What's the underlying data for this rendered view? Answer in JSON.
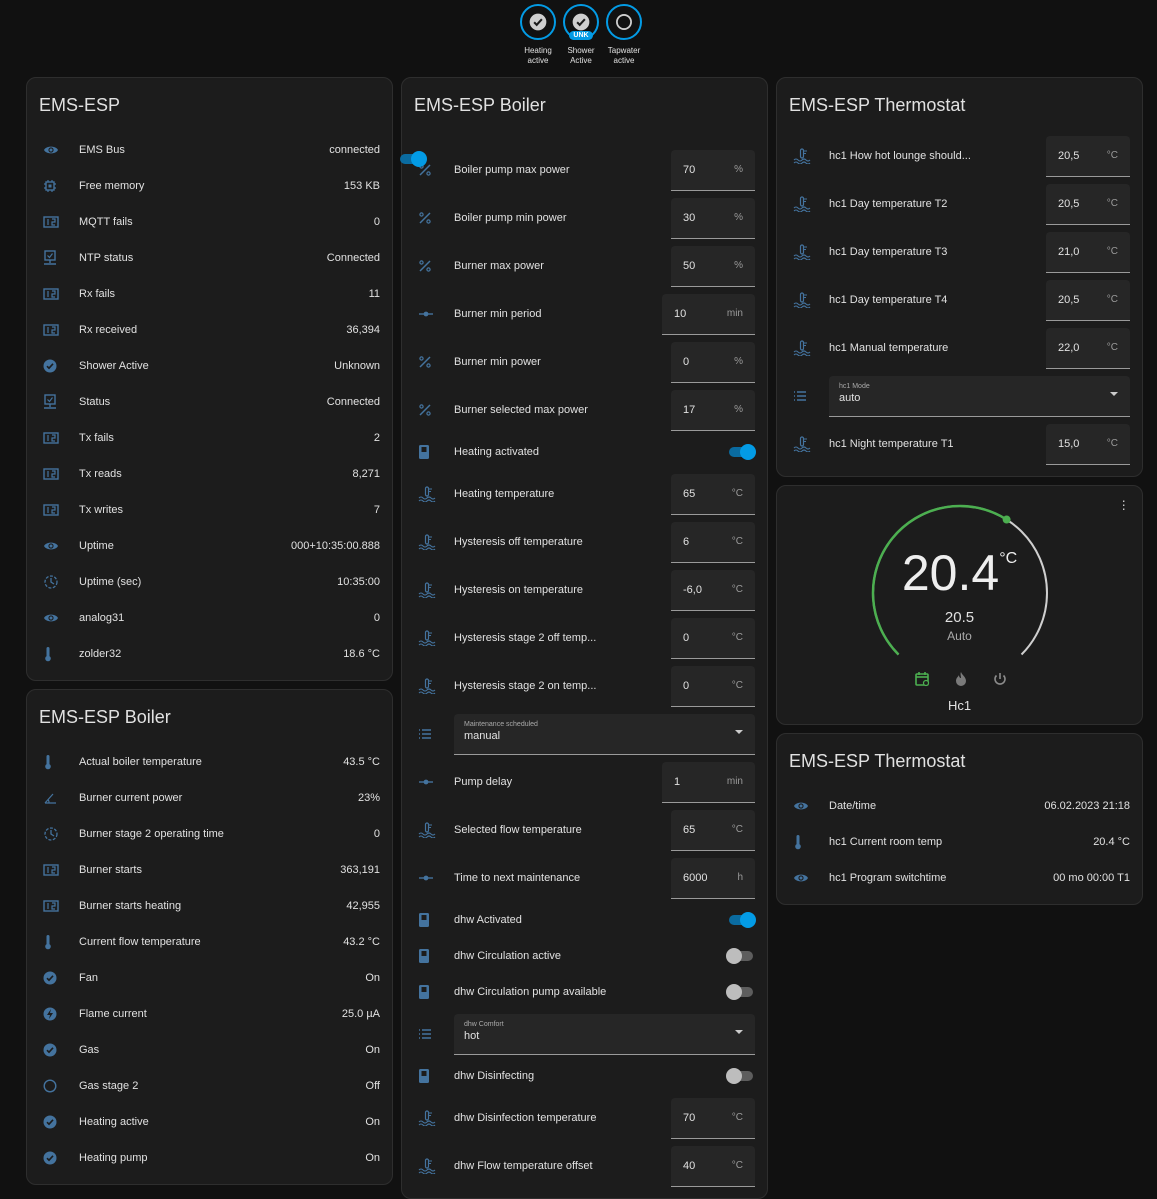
{
  "colors": {
    "accent": "#039be5",
    "icon": "#44739e",
    "heat": "#4caf50"
  },
  "badges": [
    {
      "label": "Heating active",
      "icon": "check-circle",
      "unk": ""
    },
    {
      "label": "Shower Active",
      "icon": "check-circle",
      "unk": "UNK"
    },
    {
      "label": "Tapwater active",
      "icon": "circle-outline",
      "unk": ""
    }
  ],
  "ems": {
    "title": "EMS-ESP",
    "rows": [
      {
        "icon": "eye",
        "name": "EMS Bus",
        "value": "connected"
      },
      {
        "icon": "chip",
        "name": "Free memory",
        "value": "153 KB"
      },
      {
        "icon": "counter",
        "name": "MQTT fails",
        "value": "0"
      },
      {
        "icon": "monitor-check",
        "name": "NTP status",
        "value": "Connected"
      },
      {
        "icon": "counter",
        "name": "Rx fails",
        "value": "11"
      },
      {
        "icon": "counter",
        "name": "Rx received",
        "value": "36,394"
      },
      {
        "icon": "check-circle",
        "name": "Shower Active",
        "value": "Unknown"
      },
      {
        "icon": "monitor-check",
        "name": "Status",
        "value": "Connected"
      },
      {
        "icon": "counter",
        "name": "Tx fails",
        "value": "2"
      },
      {
        "icon": "counter",
        "name": "Tx reads",
        "value": "8,271"
      },
      {
        "icon": "counter",
        "name": "Tx writes",
        "value": "7"
      },
      {
        "icon": "eye",
        "name": "Uptime",
        "value": "000+10:35:00.888"
      },
      {
        "icon": "timer",
        "name": "Uptime (sec)",
        "value": "10:35:00"
      },
      {
        "icon": "eye",
        "name": "analog31",
        "value": "0"
      },
      {
        "icon": "thermometer",
        "name": "zolder32",
        "value": "18.6 °C"
      }
    ]
  },
  "boiler_sensors": {
    "title": "EMS-ESP Boiler",
    "rows": [
      {
        "icon": "thermometer",
        "name": "Actual boiler temperature",
        "value": "43.5 °C"
      },
      {
        "icon": "angle",
        "name": "Burner current power",
        "value": "23%"
      },
      {
        "icon": "timer",
        "name": "Burner stage 2 operating time",
        "value": "0"
      },
      {
        "icon": "counter",
        "name": "Burner starts",
        "value": "363,191"
      },
      {
        "icon": "counter",
        "name": "Burner starts heating",
        "value": "42,955"
      },
      {
        "icon": "thermometer",
        "name": "Current flow temperature",
        "value": "43.2 °C"
      },
      {
        "icon": "check-circle",
        "name": "Fan",
        "value": "On"
      },
      {
        "icon": "flash",
        "name": "Flame current",
        "value": "25.0 µA"
      },
      {
        "icon": "check-circle",
        "name": "Gas",
        "value": "On"
      },
      {
        "icon": "circle-outline",
        "name": "Gas stage 2",
        "value": "Off"
      },
      {
        "icon": "check-circle",
        "name": "Heating active",
        "value": "On"
      },
      {
        "icon": "check-circle",
        "name": "Heating pump",
        "value": "On"
      }
    ]
  },
  "boiler_controls": {
    "title": "EMS-ESP Boiler",
    "header_toggle": true,
    "rows": [
      {
        "type": "input",
        "icon": "percent",
        "name": "Boiler pump max power",
        "value": "70",
        "unit": "%"
      },
      {
        "type": "input",
        "icon": "percent",
        "name": "Boiler pump min power",
        "value": "30",
        "unit": "%"
      },
      {
        "type": "input",
        "icon": "percent",
        "name": "Burner max power",
        "value": "50",
        "unit": "%"
      },
      {
        "type": "input",
        "icon": "slider",
        "name": "Burner min period",
        "value": "10",
        "unit": "min"
      },
      {
        "type": "input",
        "icon": "percent",
        "name": "Burner min power",
        "value": "0",
        "unit": "%"
      },
      {
        "type": "input",
        "icon": "percent",
        "name": "Burner selected max power",
        "value": "17",
        "unit": "%"
      },
      {
        "type": "toggle",
        "icon": "switch",
        "name": "Heating activated",
        "on": true
      },
      {
        "type": "input",
        "icon": "thermometer-water",
        "name": "Heating temperature",
        "value": "65",
        "unit": "°C"
      },
      {
        "type": "input",
        "icon": "thermometer-water",
        "name": "Hysteresis off temperature",
        "value": "6",
        "unit": "°C"
      },
      {
        "type": "input",
        "icon": "thermometer-water",
        "name": "Hysteresis on temperature",
        "value": "-6,0",
        "unit": "°C"
      },
      {
        "type": "input",
        "icon": "thermometer-water",
        "name": "Hysteresis stage 2 off temp...",
        "value": "0",
        "unit": "°C"
      },
      {
        "type": "input",
        "icon": "thermometer-water",
        "name": "Hysteresis stage 2 on temp...",
        "value": "0",
        "unit": "°C"
      },
      {
        "type": "select",
        "icon": "list",
        "label": "Maintenance scheduled",
        "value": "manual"
      },
      {
        "type": "input",
        "icon": "slider",
        "name": "Pump delay",
        "value": "1",
        "unit": "min"
      },
      {
        "type": "input",
        "icon": "thermometer-water",
        "name": "Selected flow temperature",
        "value": "65",
        "unit": "°C"
      },
      {
        "type": "input",
        "icon": "slider",
        "name": "Time to next maintenance",
        "value": "6000",
        "unit": "h"
      },
      {
        "type": "toggle",
        "icon": "switch",
        "name": "dhw Activated",
        "on": true
      },
      {
        "type": "toggle",
        "icon": "switch",
        "name": "dhw Circulation active",
        "on": false
      },
      {
        "type": "toggle",
        "icon": "switch",
        "name": "dhw Circulation pump available",
        "on": false
      },
      {
        "type": "select",
        "icon": "list",
        "label": "dhw Comfort",
        "value": "hot"
      },
      {
        "type": "toggle",
        "icon": "switch",
        "name": "dhw Disinfecting",
        "on": false
      },
      {
        "type": "input",
        "icon": "thermometer-water",
        "name": "dhw Disinfection temperature",
        "value": "70",
        "unit": "°C"
      },
      {
        "type": "input",
        "icon": "thermometer-water",
        "name": "dhw Flow temperature offset",
        "value": "40",
        "unit": "°C"
      }
    ]
  },
  "thermostat_controls": {
    "title": "EMS-ESP Thermostat",
    "rows": [
      {
        "type": "input",
        "icon": "thermometer-water",
        "name": "hc1 How hot lounge should...",
        "value": "20,5",
        "unit": "°C"
      },
      {
        "type": "input",
        "icon": "thermometer-water",
        "name": "hc1 Day temperature T2",
        "value": "20,5",
        "unit": "°C"
      },
      {
        "type": "input",
        "icon": "thermometer-water",
        "name": "hc1 Day temperature T3",
        "value": "21,0",
        "unit": "°C"
      },
      {
        "type": "input",
        "icon": "thermometer-water",
        "name": "hc1 Day temperature T4",
        "value": "20,5",
        "unit": "°C"
      },
      {
        "type": "input",
        "icon": "thermometer-water",
        "name": "hc1 Manual temperature",
        "value": "22,0",
        "unit": "°C"
      },
      {
        "type": "select",
        "icon": "list",
        "label": "hc1 Mode",
        "value": "auto"
      },
      {
        "type": "input",
        "icon": "thermometer-water",
        "name": "hc1 Night temperature T1",
        "value": "15,0",
        "unit": "°C"
      }
    ]
  },
  "climate": {
    "current": "20.4",
    "unit": "°C",
    "target": "20.5",
    "mode": "Auto",
    "name": "Hc1",
    "range": [
      5,
      30
    ],
    "modes": [
      "auto",
      "heat",
      "off"
    ],
    "active_mode": "auto"
  },
  "thermostat_sensors": {
    "title": "EMS-ESP Thermostat",
    "rows": [
      {
        "icon": "eye",
        "name": "Date/time",
        "value": "06.02.2023 21:18"
      },
      {
        "icon": "thermometer",
        "name": "hc1 Current room temp",
        "value": "20.4 °C"
      },
      {
        "icon": "eye",
        "name": "hc1 Program switchtime",
        "value": "00 mo 00:00 T1"
      }
    ]
  }
}
